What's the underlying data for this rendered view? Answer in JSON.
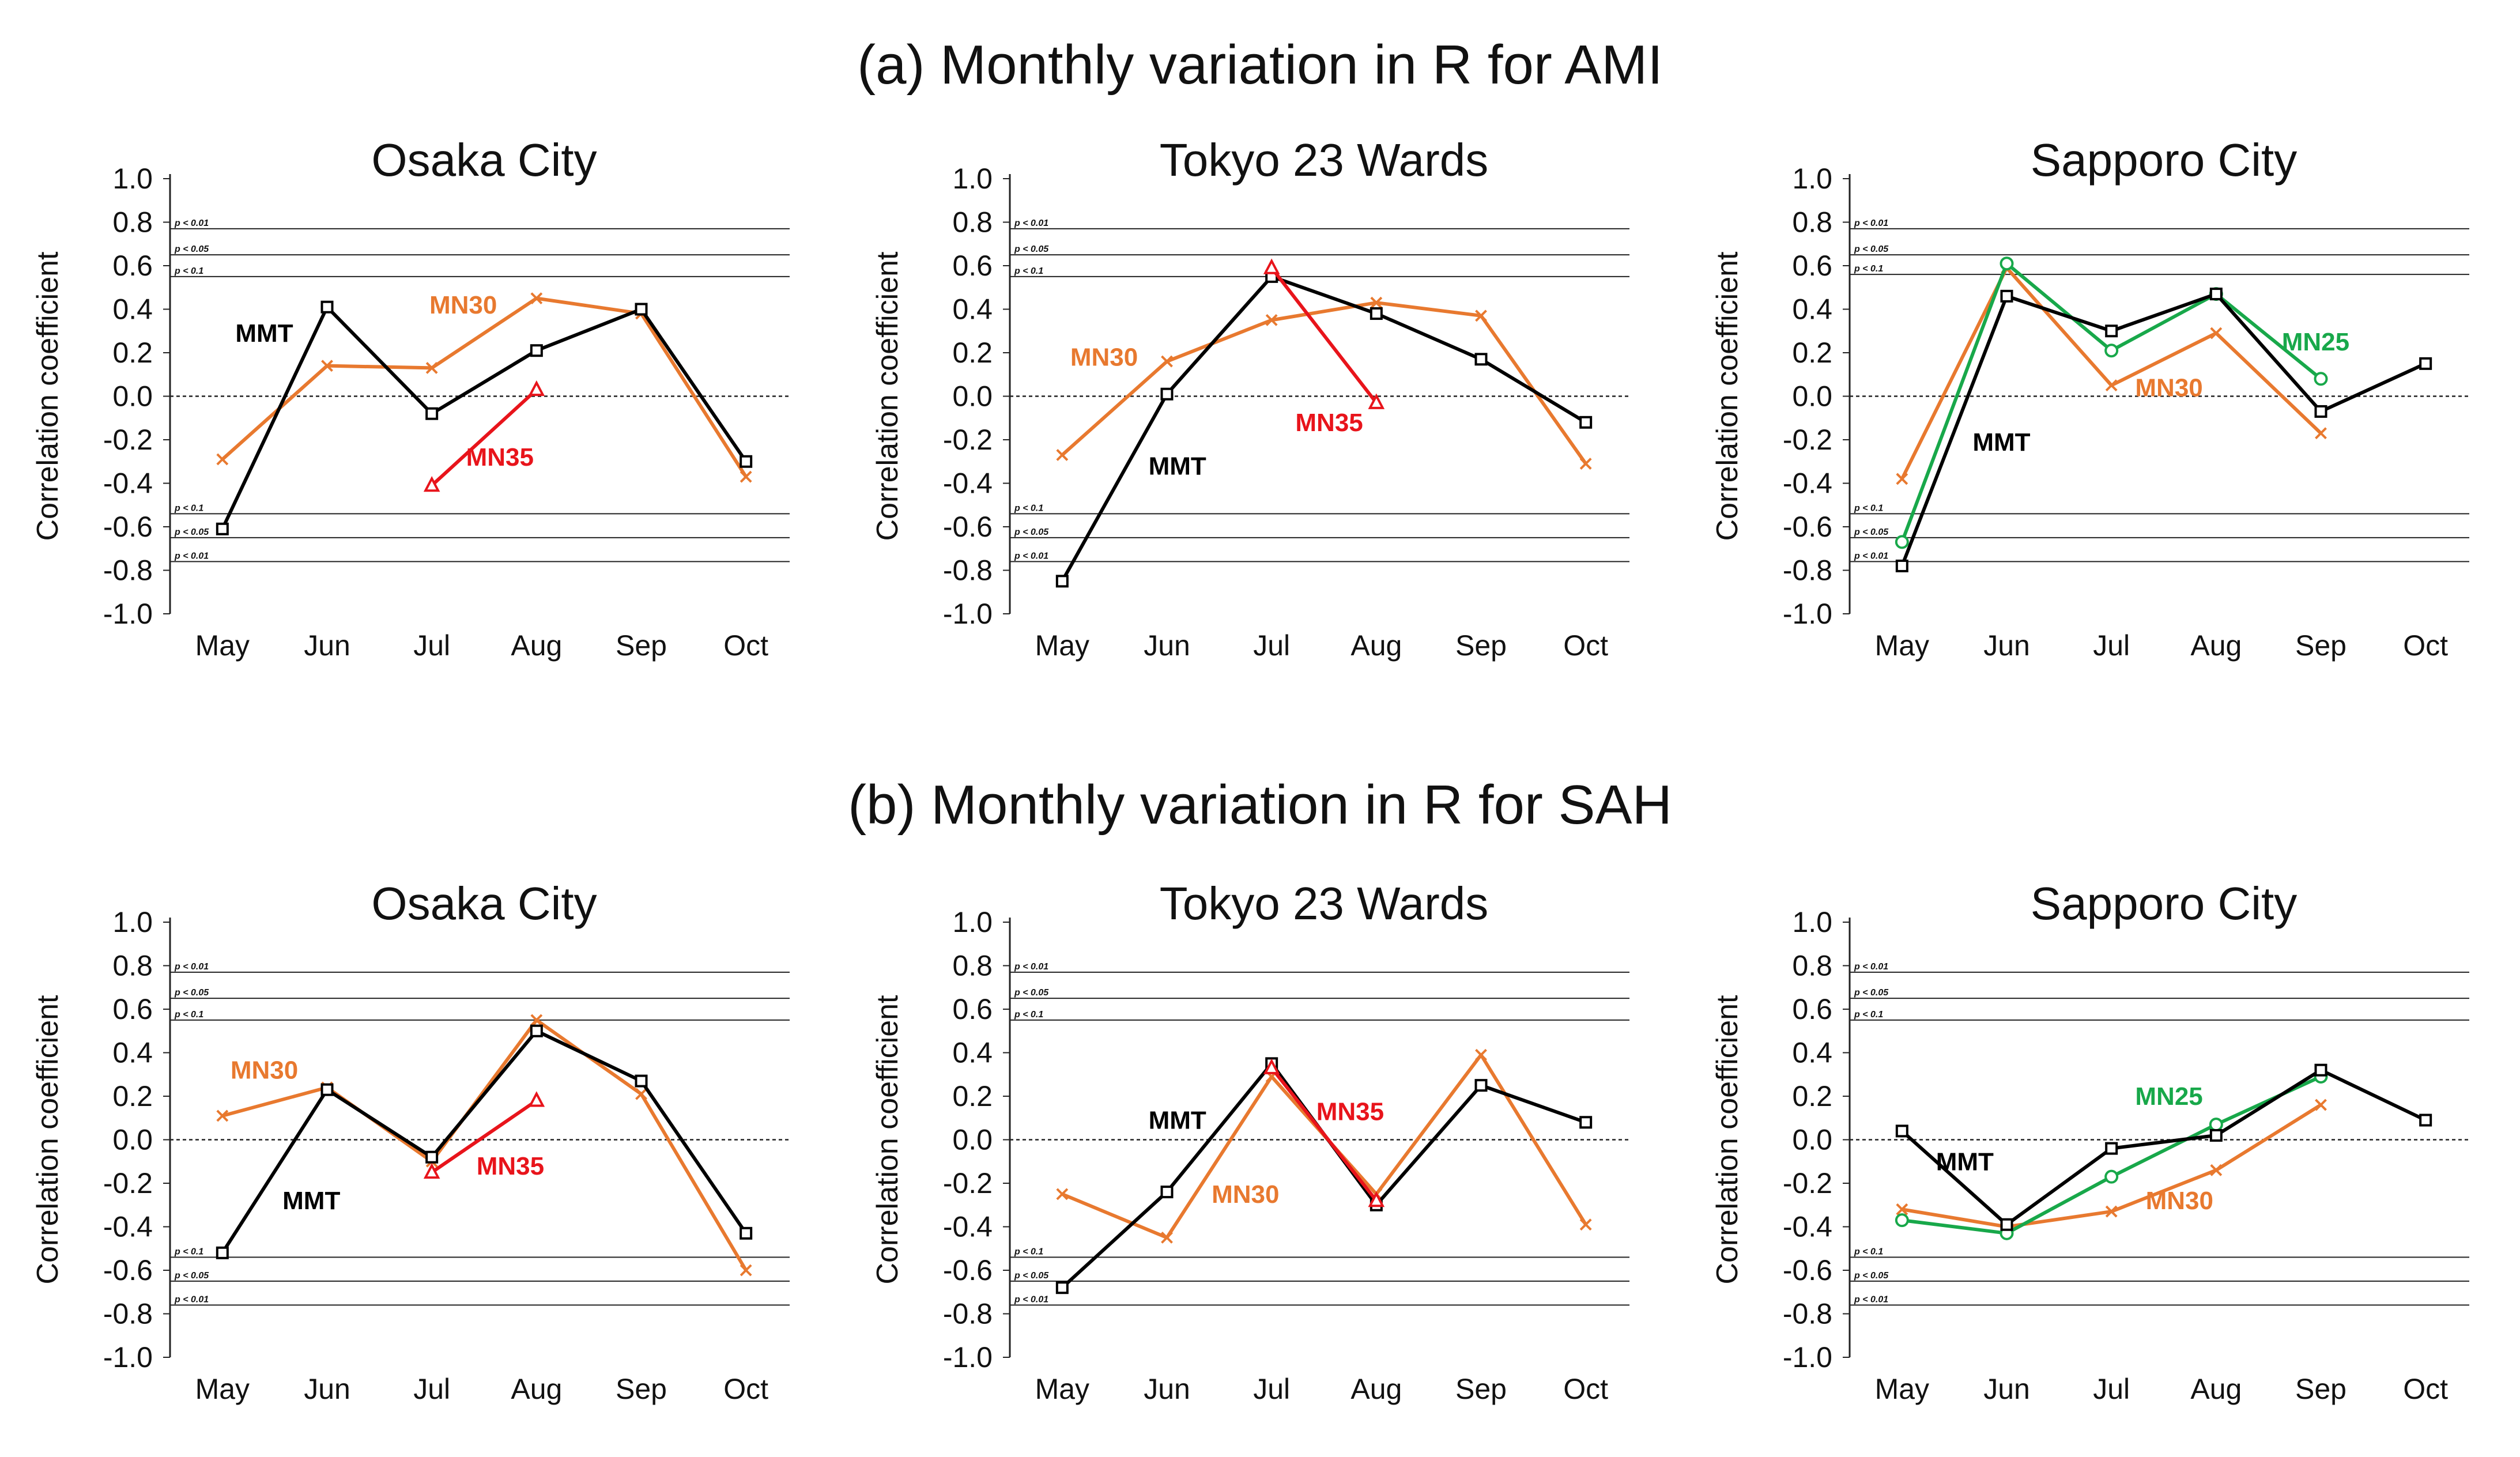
{
  "title_a": "(a)  Monthly variation in R for AMI",
  "title_b": "(b)  Monthly variation in R for SAH",
  "colors": {
    "MMT": "#000000",
    "MN30": "#E8792F",
    "MN35": "#E8141B",
    "MN25": "#18A84A"
  },
  "chart_data": [
    {
      "type": "line",
      "title": "Osaka City",
      "ylabel": "Correlation coefficient",
      "ylim": [
        -1.0,
        1.0
      ],
      "yticks": [
        "1.0",
        "0.8",
        "0.6",
        "0.4",
        "0.2",
        "0.0",
        "-0.2",
        "-0.4",
        "-0.6",
        "-0.8",
        "-1.0"
      ],
      "categories": [
        "May",
        "Jun",
        "Jul",
        "Aug",
        "Sep",
        "Oct"
      ],
      "sig_lines": [
        {
          "label": "p < 0.01",
          "value": 0.77
        },
        {
          "label": "p < 0.05",
          "value": 0.65
        },
        {
          "label": "p < 0.1",
          "value": 0.55
        },
        {
          "label": "p < 0.1",
          "value": -0.54
        },
        {
          "label": "p < 0.05",
          "value": -0.65
        },
        {
          "label": "p < 0.01",
          "value": -0.76
        }
      ],
      "series": [
        {
          "name": "MMT",
          "values": [
            -0.61,
            0.41,
            -0.08,
            0.21,
            0.4,
            -0.3
          ]
        },
        {
          "name": "MN30",
          "values": [
            -0.29,
            0.14,
            0.13,
            0.45,
            0.38,
            -0.37
          ]
        },
        {
          "name": "MN35",
          "values": [
            null,
            null,
            -0.41,
            0.03,
            null,
            null
          ]
        }
      ],
      "annotations": [
        {
          "series": "MMT",
          "text": "MMT",
          "x": 0.4,
          "y": 0.29
        },
        {
          "series": "MN30",
          "text": "MN30",
          "x": 2.3,
          "y": 0.42
        },
        {
          "series": "MN35",
          "text": "MN35",
          "x": 2.65,
          "y": -0.28
        }
      ]
    },
    {
      "type": "line",
      "title": "Tokyo 23 Wards",
      "ylabel": "Correlation coefficient",
      "ylim": [
        -1.0,
        1.0
      ],
      "yticks": [
        "1.0",
        "0.8",
        "0.6",
        "0.4",
        "0.2",
        "0.0",
        "-0.2",
        "-0.4",
        "-0.6",
        "-0.8",
        "-1.0"
      ],
      "categories": [
        "May",
        "Jun",
        "Jul",
        "Aug",
        "Sep",
        "Oct"
      ],
      "sig_lines": [
        {
          "label": "p < 0.01",
          "value": 0.77
        },
        {
          "label": "p < 0.05",
          "value": 0.65
        },
        {
          "label": "p < 0.1",
          "value": 0.55
        },
        {
          "label": "p < 0.1",
          "value": -0.54
        },
        {
          "label": "p < 0.05",
          "value": -0.65
        },
        {
          "label": "p < 0.01",
          "value": -0.76
        }
      ],
      "series": [
        {
          "name": "MMT",
          "values": [
            -0.85,
            0.01,
            0.55,
            0.38,
            0.17,
            -0.12
          ]
        },
        {
          "name": "MN30",
          "values": [
            -0.27,
            0.16,
            0.35,
            0.43,
            0.37,
            -0.31
          ]
        },
        {
          "name": "MN35",
          "values": [
            null,
            null,
            0.59,
            -0.03,
            null,
            null
          ]
        }
      ],
      "annotations": [
        {
          "series": "MN30",
          "text": "MN30",
          "x": 0.4,
          "y": 0.18
        },
        {
          "series": "MMT",
          "text": "MMT",
          "x": 1.1,
          "y": -0.32
        },
        {
          "series": "MN35",
          "text": "MN35",
          "x": 2.55,
          "y": -0.12
        }
      ]
    },
    {
      "type": "line",
      "title": "Sapporo City",
      "ylabel": "Correlation coefficient",
      "ylim": [
        -1.0,
        1.0
      ],
      "yticks": [
        "1.0",
        "0.8",
        "0.6",
        "0.4",
        "0.2",
        "0.0",
        "-0.2",
        "-0.4",
        "-0.6",
        "-0.8",
        "-1.0"
      ],
      "categories": [
        "May",
        "Jun",
        "Jul",
        "Aug",
        "Sep",
        "Oct"
      ],
      "sig_lines": [
        {
          "label": "p < 0.01",
          "value": 0.77
        },
        {
          "label": "p < 0.05",
          "value": 0.65
        },
        {
          "label": "p < 0.1",
          "value": 0.56
        },
        {
          "label": "p < 0.1",
          "value": -0.54
        },
        {
          "label": "p < 0.05",
          "value": -0.65
        },
        {
          "label": "p < 0.01",
          "value": -0.76
        }
      ],
      "series": [
        {
          "name": "MMT",
          "values": [
            -0.78,
            0.46,
            0.3,
            0.47,
            -0.07,
            0.15
          ]
        },
        {
          "name": "MN30",
          "values": [
            -0.38,
            0.59,
            0.05,
            0.29,
            -0.17,
            null
          ]
        },
        {
          "name": "MN25",
          "values": [
            -0.67,
            0.61,
            0.21,
            0.47,
            0.08,
            null
          ]
        }
      ],
      "annotations": [
        {
          "series": "MMT",
          "text": "MMT",
          "x": 0.95,
          "y": -0.21
        },
        {
          "series": "MN30",
          "text": "MN30",
          "x": 2.55,
          "y": 0.04
        },
        {
          "series": "MN25",
          "text": "MN25",
          "x": 3.95,
          "y": 0.25
        }
      ]
    },
    {
      "type": "line",
      "title": "Osaka City",
      "ylabel": "Correlation coefficient",
      "ylim": [
        -1.0,
        1.0
      ],
      "yticks": [
        "1.0",
        "0.8",
        "0.6",
        "0.4",
        "0.2",
        "0.0",
        "-0.2",
        "-0.4",
        "-0.6",
        "-0.8",
        "-1.0"
      ],
      "categories": [
        "May",
        "Jun",
        "Jul",
        "Aug",
        "Sep",
        "Oct"
      ],
      "sig_lines": [
        {
          "label": "p < 0.01",
          "value": 0.77
        },
        {
          "label": "p < 0.05",
          "value": 0.65
        },
        {
          "label": "p < 0.1",
          "value": 0.55
        },
        {
          "label": "p < 0.1",
          "value": -0.54
        },
        {
          "label": "p < 0.05",
          "value": -0.65
        },
        {
          "label": "p < 0.01",
          "value": -0.76
        }
      ],
      "series": [
        {
          "name": "MMT",
          "values": [
            -0.52,
            0.23,
            -0.08,
            0.5,
            0.27,
            -0.43
          ]
        },
        {
          "name": "MN30",
          "values": [
            0.11,
            0.24,
            -0.1,
            0.55,
            0.21,
            -0.6
          ]
        },
        {
          "name": "MN35",
          "values": [
            null,
            null,
            -0.15,
            0.18,
            null,
            null
          ]
        }
      ],
      "annotations": [
        {
          "series": "MN30",
          "text": "MN30",
          "x": 0.4,
          "y": 0.32
        },
        {
          "series": "MMT",
          "text": "MMT",
          "x": 0.85,
          "y": -0.28
        },
        {
          "series": "MN35",
          "text": "MN35",
          "x": 2.75,
          "y": -0.12
        }
      ]
    },
    {
      "type": "line",
      "title": "Tokyo 23 Wards",
      "ylabel": "Correlation coefficient",
      "ylim": [
        -1.0,
        1.0
      ],
      "yticks": [
        "1.0",
        "0.8",
        "0.6",
        "0.4",
        "0.2",
        "0.0",
        "-0.2",
        "-0.4",
        "-0.6",
        "-0.8",
        "-1.0"
      ],
      "categories": [
        "May",
        "Jun",
        "Jul",
        "Aug",
        "Sep",
        "Oct"
      ],
      "sig_lines": [
        {
          "label": "p < 0.01",
          "value": 0.77
        },
        {
          "label": "p < 0.05",
          "value": 0.65
        },
        {
          "label": "p < 0.1",
          "value": 0.55
        },
        {
          "label": "p < 0.1",
          "value": -0.54
        },
        {
          "label": "p < 0.05",
          "value": -0.65
        },
        {
          "label": "p < 0.01",
          "value": -0.76
        }
      ],
      "series": [
        {
          "name": "MMT",
          "values": [
            -0.68,
            -0.24,
            0.35,
            -0.3,
            0.25,
            0.08
          ]
        },
        {
          "name": "MN30",
          "values": [
            -0.25,
            -0.45,
            0.29,
            -0.25,
            0.39,
            -0.39
          ]
        },
        {
          "name": "MN35",
          "values": [
            null,
            null,
            0.33,
            -0.28,
            null,
            null
          ]
        }
      ],
      "annotations": [
        {
          "series": "MMT",
          "text": "MMT",
          "x": 1.1,
          "y": 0.09
        },
        {
          "series": "MN35",
          "text": "MN35",
          "x": 2.75,
          "y": 0.13
        },
        {
          "series": "MN30",
          "text": "MN30",
          "x": 1.75,
          "y": -0.25
        }
      ]
    },
    {
      "type": "line",
      "title": "Sapporo City",
      "ylabel": "Correlation coefficient",
      "ylim": [
        -1.0,
        1.0
      ],
      "yticks": [
        "1.0",
        "0.8",
        "0.6",
        "0.4",
        "0.2",
        "0.0",
        "-0.2",
        "-0.4",
        "-0.6",
        "-0.8",
        "-1.0"
      ],
      "categories": [
        "May",
        "Jun",
        "Jul",
        "Aug",
        "Sep",
        "Oct"
      ],
      "sig_lines": [
        {
          "label": "p < 0.01",
          "value": 0.77
        },
        {
          "label": "p < 0.05",
          "value": 0.65
        },
        {
          "label": "p < 0.1",
          "value": 0.55
        },
        {
          "label": "p < 0.1",
          "value": -0.54
        },
        {
          "label": "p < 0.05",
          "value": -0.65
        },
        {
          "label": "p < 0.01",
          "value": -0.76
        }
      ],
      "series": [
        {
          "name": "MMT",
          "values": [
            0.04,
            -0.39,
            -0.04,
            0.02,
            0.32,
            0.09
          ]
        },
        {
          "name": "MN30",
          "values": [
            -0.32,
            -0.4,
            -0.33,
            -0.14,
            0.16,
            null
          ]
        },
        {
          "name": "MN25",
          "values": [
            -0.37,
            -0.43,
            -0.17,
            0.07,
            0.29,
            null
          ]
        }
      ],
      "annotations": [
        {
          "series": "MMT",
          "text": "MMT",
          "x": 0.6,
          "y": -0.1
        },
        {
          "series": "MN25",
          "text": "MN25",
          "x": 2.55,
          "y": 0.2
        },
        {
          "series": "MN30",
          "text": "MN30",
          "x": 2.65,
          "y": -0.28
        }
      ]
    }
  ]
}
